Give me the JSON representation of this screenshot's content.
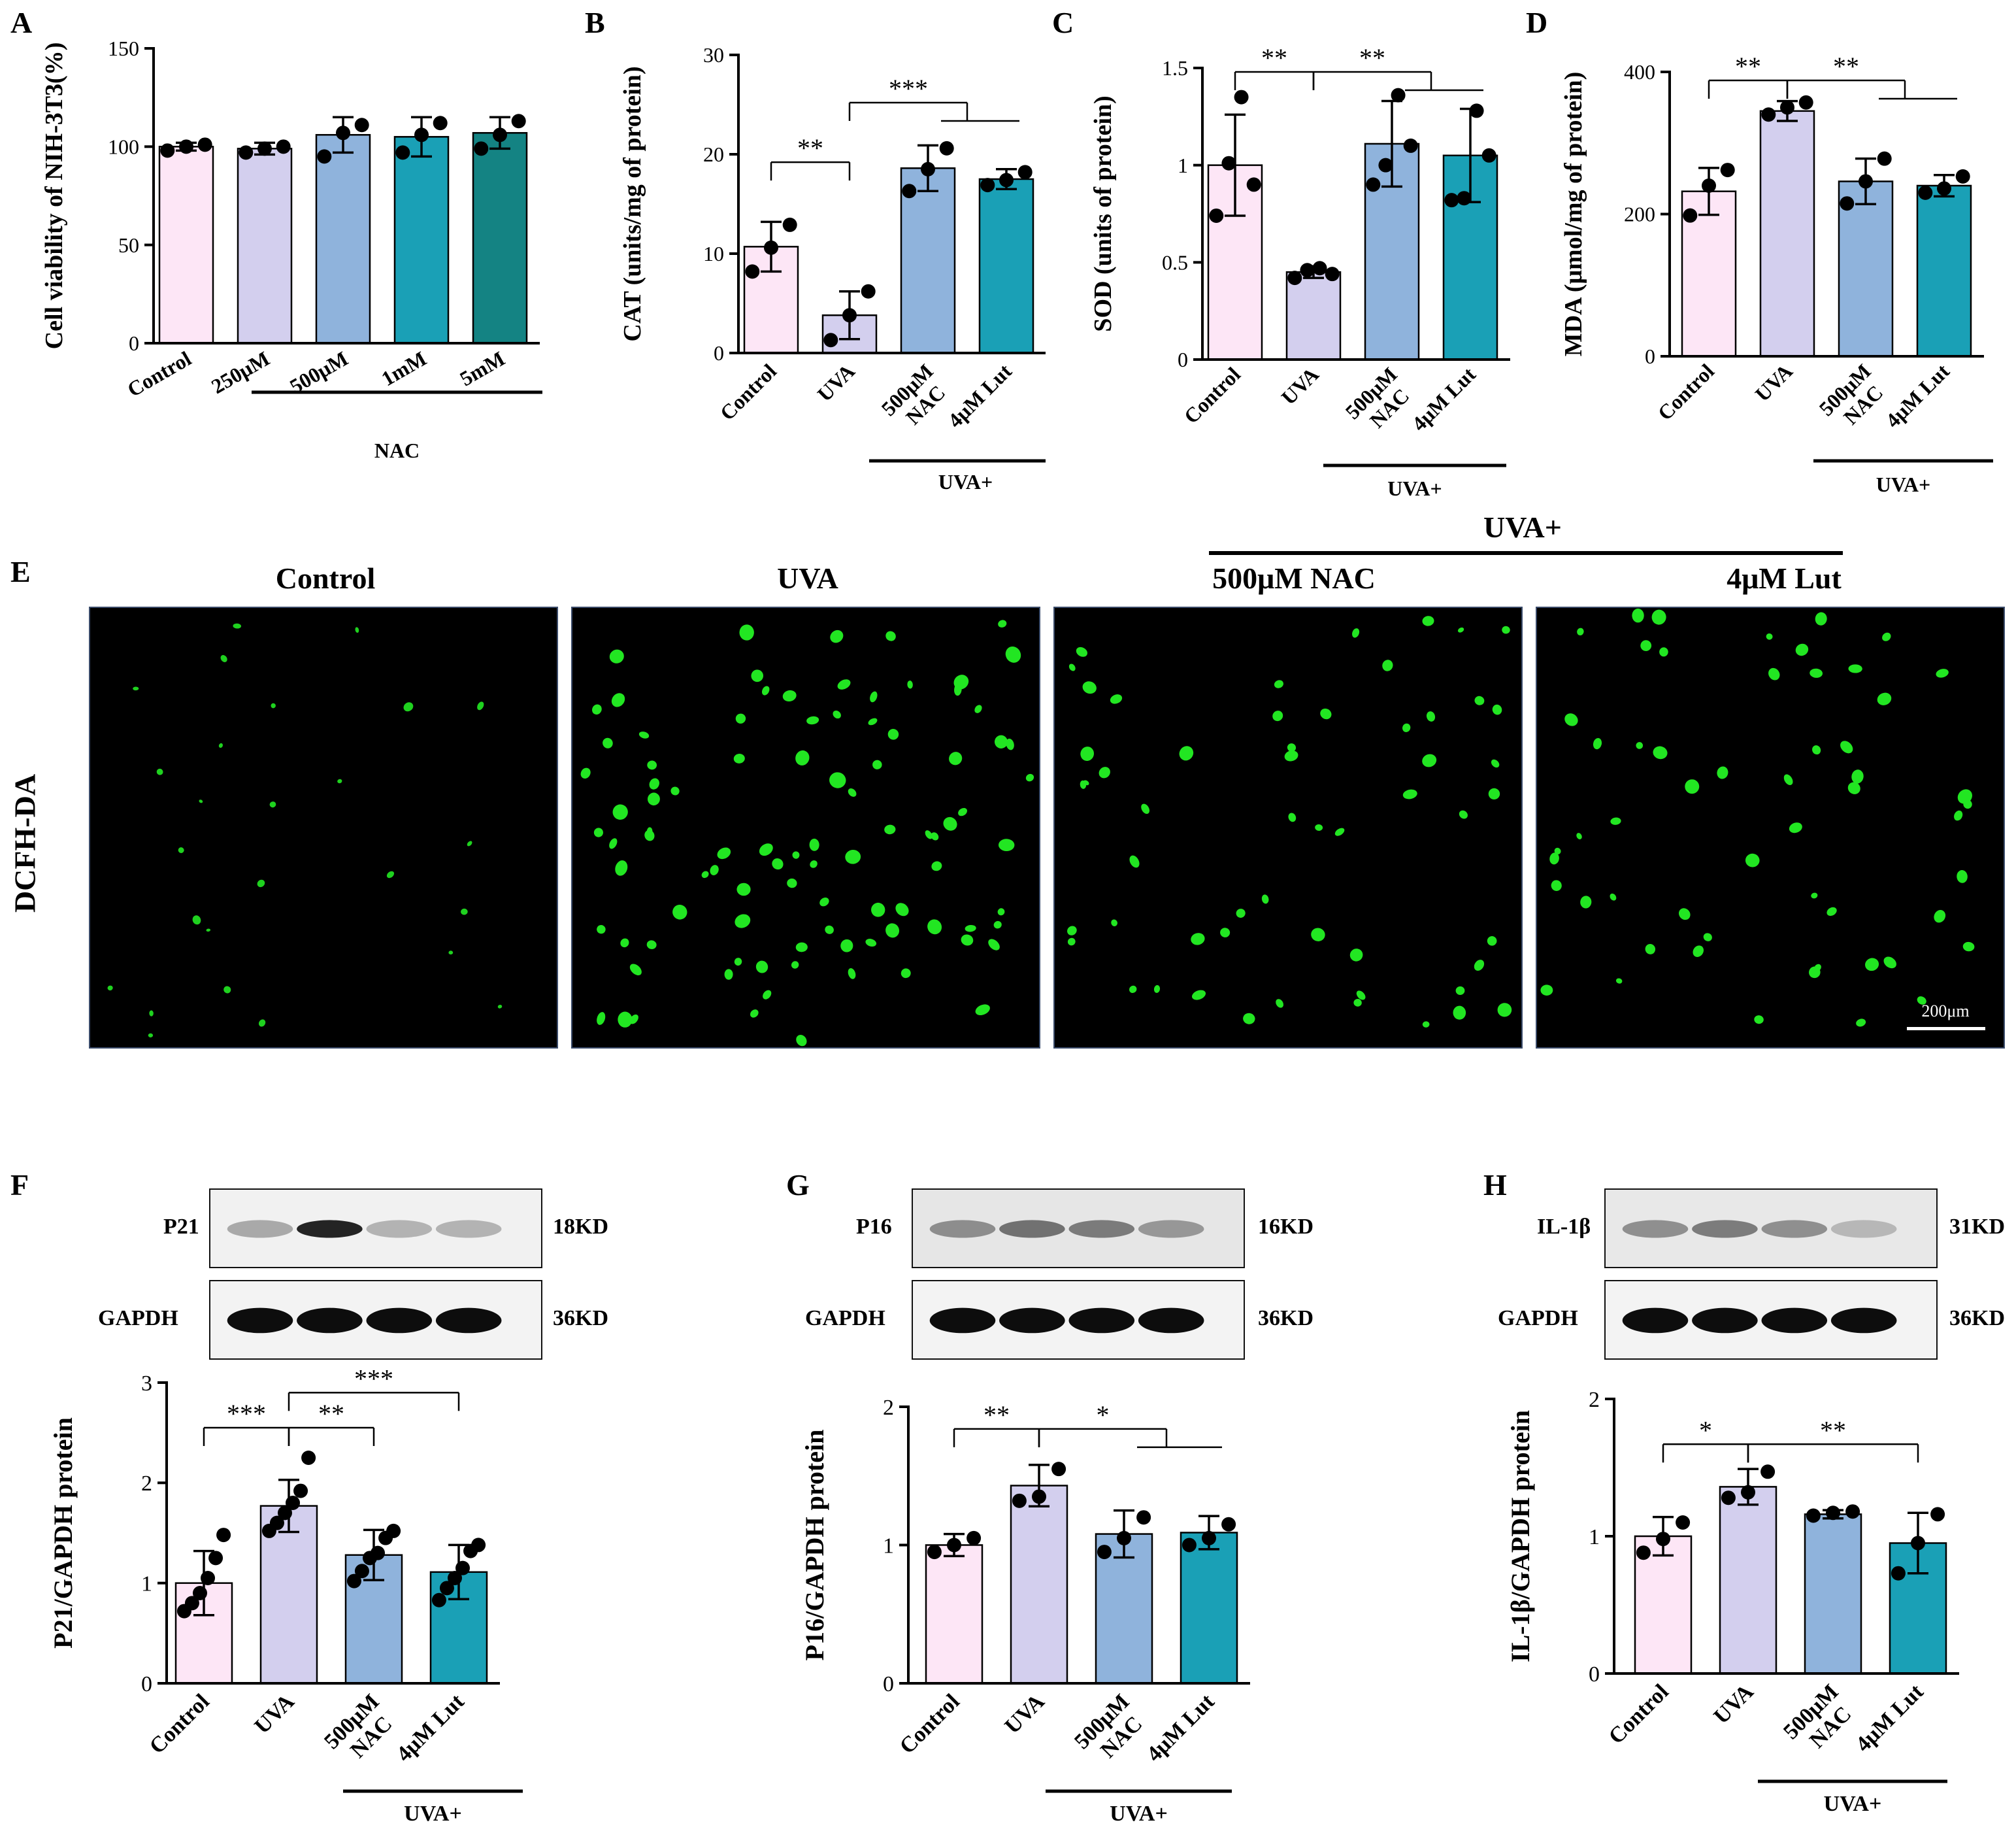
{
  "colors": {
    "control": "#fde6f6",
    "uva": "#d3cfee",
    "nac": "#8fb3dc",
    "lut": "#1aa0b6",
    "c5mm": "#148383"
  },
  "panel_letters": [
    "A",
    "B",
    "C",
    "D",
    "E",
    "F",
    "G",
    "H"
  ],
  "chart_data": [
    {
      "id": "A",
      "type": "bar",
      "ylabel": "Cell viability of NIH-3T3(%)",
      "ylim": [
        0,
        150
      ],
      "yticks": [
        0,
        50,
        100,
        150
      ],
      "categories": [
        "Control",
        "250μM",
        "500μM",
        "1mM",
        "5mM"
      ],
      "values": [
        100,
        99,
        106,
        105,
        107
      ],
      "errors": [
        2,
        3,
        9,
        10,
        8
      ],
      "points": [
        [
          98,
          100,
          101
        ],
        [
          97,
          99,
          100
        ],
        [
          95,
          107,
          111
        ],
        [
          97,
          106,
          112
        ],
        [
          99,
          106,
          113
        ]
      ],
      "colors": [
        "control",
        "uva",
        "nac",
        "lut",
        "c5mm"
      ],
      "group_label": "NAC",
      "group_span": [
        1,
        4
      ],
      "brackets": []
    },
    {
      "id": "B",
      "type": "bar",
      "ylabel": "CAT (units/mg of protein)",
      "ylim": [
        0,
        30
      ],
      "yticks": [
        0,
        10,
        20,
        30
      ],
      "categories": [
        "Control",
        "UVA",
        "500μM NAC",
        "4μM Lut"
      ],
      "values": [
        10.7,
        3.8,
        18.6,
        17.5
      ],
      "errors": [
        2.5,
        2.4,
        2.3,
        1.0
      ],
      "points": [
        [
          8.2,
          10.6,
          12.9
        ],
        [
          1.3,
          3.8,
          6.2
        ],
        [
          16.3,
          18.5,
          20.6
        ],
        [
          16.9,
          17.4,
          18.2
        ]
      ],
      "colors": [
        "control",
        "uva",
        "nac",
        "lut"
      ],
      "group_label": "UVA+",
      "group_span": [
        2,
        3
      ],
      "brackets": [
        {
          "from": 0,
          "to": [
            1
          ],
          "label": "**",
          "y": 19.2
        },
        {
          "from": 1,
          "to": [
            2,
            3
          ],
          "label": "***",
          "y": 25.2
        }
      ]
    },
    {
      "id": "C",
      "type": "bar",
      "ylabel": "SOD (units of protein)",
      "ylim": [
        0,
        1.5
      ],
      "yticks": [
        0,
        0.5,
        1,
        1.5
      ],
      "ytick_labels": [
        "0",
        "0.5",
        "1",
        "1.5"
      ],
      "categories": [
        "Control",
        "UVA",
        "500μM NAC",
        "4μM Lut"
      ],
      "values": [
        1.0,
        0.45,
        1.11,
        1.05
      ],
      "errors": [
        0.26,
        0.03,
        0.22,
        0.24
      ],
      "points": [
        [
          0.74,
          1.01,
          1.35,
          0.9
        ],
        [
          0.42,
          0.46,
          0.47,
          0.44
        ],
        [
          0.9,
          1.0,
          1.36,
          1.1
        ],
        [
          0.82,
          0.83,
          1.28,
          1.05
        ]
      ],
      "colors": [
        "control",
        "uva",
        "nac",
        "lut"
      ],
      "group_label": "UVA+",
      "group_span": [
        2,
        3
      ],
      "brackets": [
        {
          "from": 0,
          "to": [
            1
          ],
          "label": "**",
          "y": 1.48
        },
        {
          "from": 1,
          "to": [
            2,
            3
          ],
          "label": "**",
          "y": 1.48
        }
      ]
    },
    {
      "id": "D",
      "type": "bar",
      "ylabel": "MDA (μmol/mg of protein)",
      "ylim": [
        0,
        400
      ],
      "yticks": [
        0,
        200,
        400
      ],
      "categories": [
        "Control",
        "UVA",
        "500μM NAC",
        "4μM Lut"
      ],
      "values": [
        232,
        345,
        246,
        240
      ],
      "errors": [
        33,
        14,
        32,
        15
      ],
      "points": [
        [
          198,
          240,
          262
        ],
        [
          340,
          350,
          357
        ],
        [
          215,
          246,
          278
        ],
        [
          230,
          236,
          253
        ]
      ],
      "colors": [
        "control",
        "uva",
        "nac",
        "lut"
      ],
      "group_label": "UVA+",
      "group_span": [
        2,
        3
      ],
      "brackets": [
        {
          "from": 0,
          "to": [
            1
          ],
          "label": "**",
          "y": 388
        },
        {
          "from": 1,
          "to": [
            2,
            3
          ],
          "label": "**",
          "y": 388
        }
      ]
    },
    {
      "id": "F",
      "type": "bar",
      "ylabel": "P21/GAPDH protein",
      "ylim": [
        0,
        3
      ],
      "yticks": [
        0,
        1,
        2,
        3
      ],
      "categories": [
        "Control",
        "UVA",
        "500μM NAC",
        "4μM Lut"
      ],
      "values": [
        1.0,
        1.77,
        1.28,
        1.11
      ],
      "errors": [
        0.32,
        0.26,
        0.25,
        0.27
      ],
      "points": [
        [
          0.72,
          0.8,
          0.9,
          1.05,
          1.25,
          1.48
        ],
        [
          1.52,
          1.6,
          1.7,
          1.8,
          1.92,
          2.25
        ],
        [
          1.02,
          1.12,
          1.25,
          1.3,
          1.45,
          1.52
        ],
        [
          0.83,
          0.95,
          1.05,
          1.15,
          1.32,
          1.38
        ]
      ],
      "colors": [
        "control",
        "uva",
        "nac",
        "lut"
      ],
      "group_label": "UVA+",
      "group_span": [
        2,
        3
      ],
      "brackets": [
        {
          "from": 0,
          "to": [
            1
          ],
          "label": "***",
          "y": 2.55
        },
        {
          "from": 1,
          "to": [
            2
          ],
          "label": "**",
          "y": 2.55
        },
        {
          "from": 1,
          "to": [
            3
          ],
          "label": "***",
          "y": 2.9
        }
      ]
    },
    {
      "id": "G",
      "type": "bar",
      "ylabel": "P16/GAPDH protein",
      "ylim": [
        0,
        2
      ],
      "yticks": [
        0,
        1,
        2
      ],
      "categories": [
        "Control",
        "UVA",
        "500μM NAC",
        "4μM Lut"
      ],
      "values": [
        1.0,
        1.43,
        1.08,
        1.09
      ],
      "errors": [
        0.08,
        0.15,
        0.17,
        0.12
      ],
      "points": [
        [
          0.95,
          1.0,
          1.05
        ],
        [
          1.32,
          1.35,
          1.55
        ],
        [
          0.95,
          1.05,
          1.2
        ],
        [
          1.0,
          1.05,
          1.15
        ]
      ],
      "colors": [
        "control",
        "uva",
        "nac",
        "lut"
      ],
      "group_label": "UVA+",
      "group_span": [
        2,
        3
      ],
      "brackets": [
        {
          "from": 0,
          "to": [
            1
          ],
          "label": "**",
          "y": 1.84
        },
        {
          "from": 1,
          "to": [
            2,
            3
          ],
          "label": "*",
          "y": 1.84
        }
      ]
    },
    {
      "id": "H",
      "type": "bar",
      "ylabel": "IL-1β/GAPDH protein",
      "ylim": [
        0,
        2
      ],
      "yticks": [
        0,
        1,
        2
      ],
      "categories": [
        "Control",
        "UVA",
        "500μM NAC",
        "4μM Lut"
      ],
      "values": [
        1.0,
        1.36,
        1.16,
        0.95
      ],
      "errors": [
        0.14,
        0.13,
        0.03,
        0.22
      ],
      "points": [
        [
          0.88,
          0.98,
          1.1
        ],
        [
          1.28,
          1.32,
          1.47
        ],
        [
          1.15,
          1.17,
          1.18
        ],
        [
          0.73,
          0.95,
          1.16
        ]
      ],
      "colors": [
        "control",
        "uva",
        "nac",
        "lut"
      ],
      "group_label": "UVA+",
      "group_span": [
        2,
        3
      ],
      "brackets": [
        {
          "from": 0,
          "to": [
            1
          ],
          "label": "*",
          "y": 1.67
        },
        {
          "from": 1,
          "to": [
            3
          ],
          "label": "**",
          "y": 1.67
        }
      ]
    }
  ],
  "micrographs": {
    "row_label": "DCFH-DA",
    "group_label": "UVA+",
    "scale_bar": "200μm",
    "titles": [
      "Control",
      "UVA",
      "500μM NAC",
      "4μM Lut"
    ]
  },
  "blots": {
    "F": {
      "target": "P21",
      "target_kd": "18KD",
      "loading": "GAPDH",
      "loading_kd": "36KD"
    },
    "G": {
      "target": "P16",
      "target_kd": "16KD",
      "loading": "GAPDH",
      "loading_kd": "36KD"
    },
    "H": {
      "target": "IL-1β",
      "target_kd": "31KD",
      "loading": "GAPDH",
      "loading_kd": "36KD"
    }
  }
}
